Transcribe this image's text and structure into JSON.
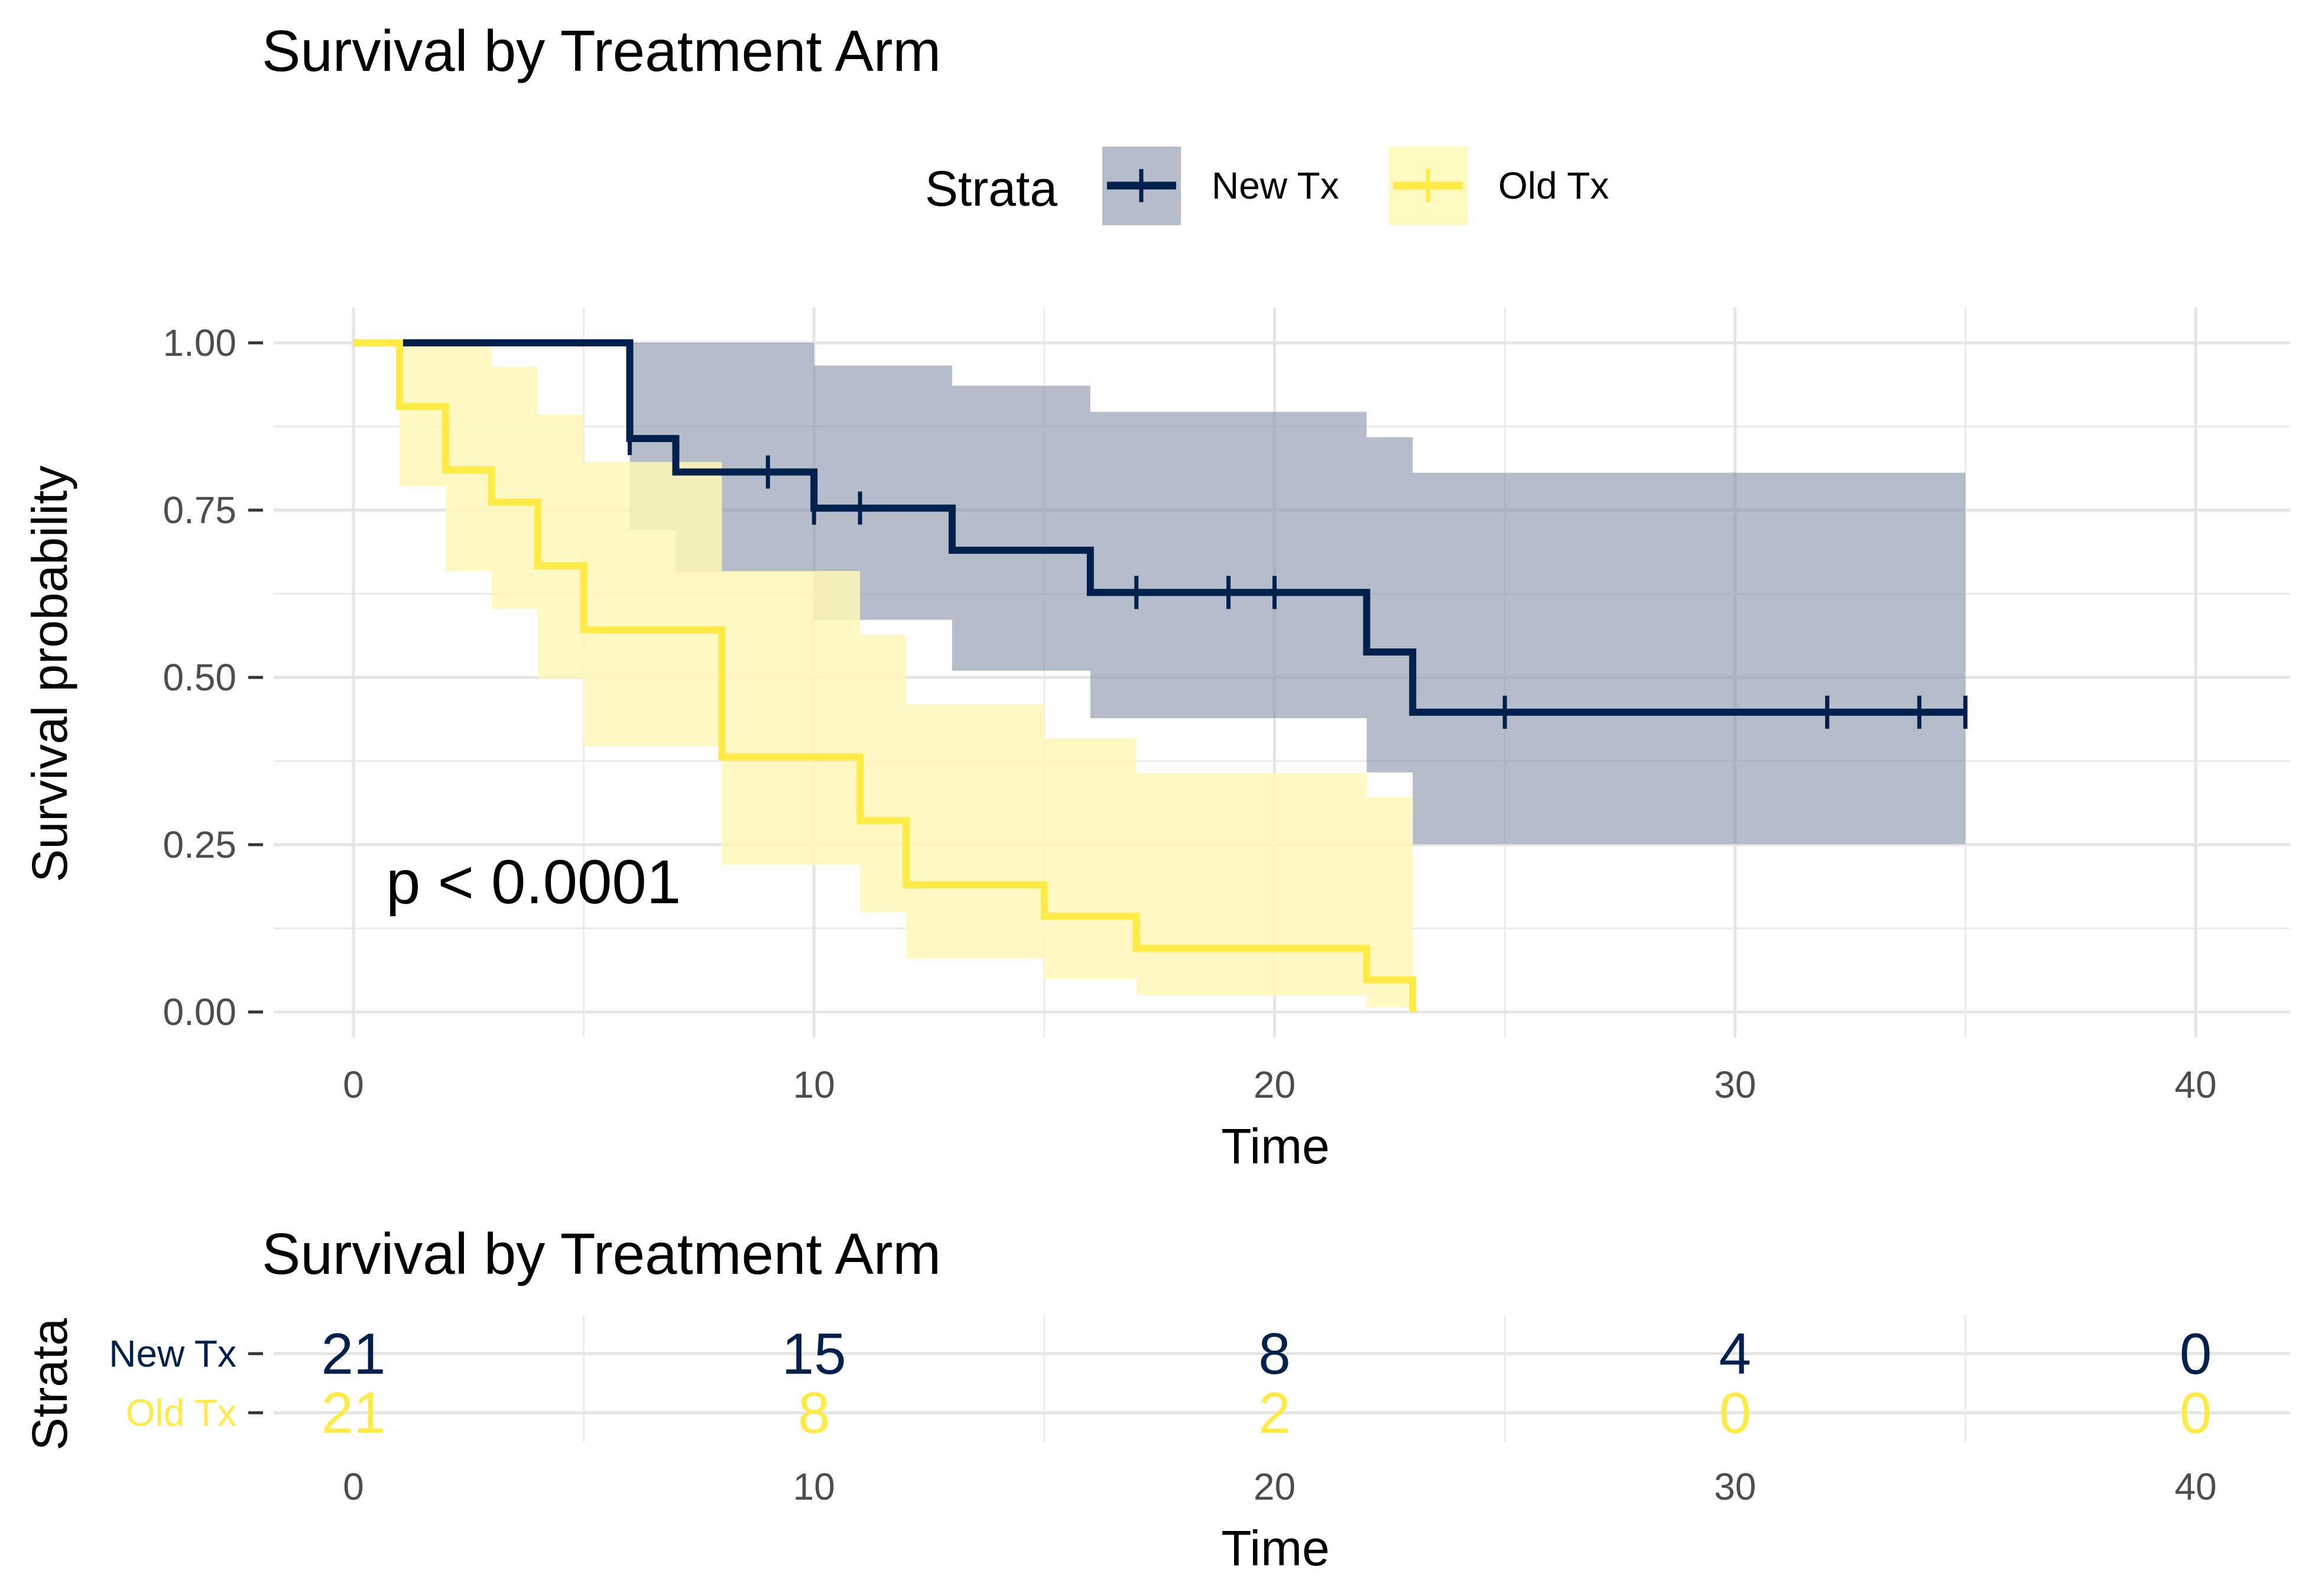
{
  "chart_data": [
    {
      "type": "line",
      "subtype": "kaplan-meier-step",
      "title": "Survival by Treatment Arm",
      "xlabel": "Time",
      "ylabel": "Survival probability",
      "xlim": [
        0,
        40
      ],
      "ylim": [
        0,
        1
      ],
      "xticks": [
        "0",
        "10",
        "20",
        "30",
        "40"
      ],
      "yticks": [
        "0.00",
        "0.25",
        "0.50",
        "0.75",
        "1.00"
      ],
      "grid": true,
      "legend": {
        "title": "Strata",
        "position": "top"
      },
      "annotation": "p < 0.0001",
      "series": [
        {
          "name": "New Tx",
          "color": "#00204d",
          "fill": "#8390a6",
          "steps": [
            [
              0,
              1.0
            ],
            [
              6,
              0.857
            ],
            [
              7,
              0.807
            ],
            [
              10,
              0.753
            ],
            [
              13,
              0.69
            ],
            [
              16,
              0.627
            ],
            [
              22,
              0.538
            ],
            [
              23,
              0.448
            ],
            [
              35,
              0.448
            ]
          ],
          "lower": [
            [
              0,
              1.0
            ],
            [
              6,
              0.72
            ],
            [
              7,
              0.657
            ],
            [
              10,
              0.586
            ],
            [
              13,
              0.51
            ],
            [
              16,
              0.439
            ],
            [
              22,
              0.358
            ],
            [
              23,
              0.251
            ],
            [
              35,
              0.251
            ]
          ],
          "upper": [
            [
              0,
              1.0
            ],
            [
              6,
              1.0
            ],
            [
              7,
              1.0
            ],
            [
              10,
              0.966
            ],
            [
              13,
              0.936
            ],
            [
              16,
              0.897
            ],
            [
              22,
              0.859
            ],
            [
              23,
              0.806
            ],
            [
              35,
              0.806
            ]
          ],
          "censored": [
            6,
            9,
            10,
            11,
            17,
            19,
            20,
            25,
            32,
            34,
            35
          ]
        },
        {
          "name": "Old Tx",
          "color": "#ffea46",
          "fill": "#fff7b8",
          "steps": [
            [
              0,
              1.0
            ],
            [
              1,
              0.905
            ],
            [
              2,
              0.81
            ],
            [
              3,
              0.762
            ],
            [
              4,
              0.667
            ],
            [
              5,
              0.571
            ],
            [
              8,
              0.381
            ],
            [
              11,
              0.286
            ],
            [
              12,
              0.19
            ],
            [
              15,
              0.143
            ],
            [
              17,
              0.095
            ],
            [
              22,
              0.048
            ],
            [
              23,
              0.0
            ]
          ],
          "lower": [
            [
              0,
              1.0
            ],
            [
              1,
              0.786
            ],
            [
              2,
              0.659
            ],
            [
              3,
              0.602
            ],
            [
              4,
              0.498
            ],
            [
              5,
              0.397
            ],
            [
              8,
              0.22
            ],
            [
              11,
              0.149
            ],
            [
              12,
              0.08
            ],
            [
              15,
              0.049
            ],
            [
              17,
              0.025
            ],
            [
              22,
              0.007
            ],
            [
              23,
              0.007
            ]
          ],
          "upper": [
            [
              0,
              1.0
            ],
            [
              1,
              1.0
            ],
            [
              2,
              0.995
            ],
            [
              3,
              0.964
            ],
            [
              4,
              0.893
            ],
            [
              5,
              0.822
            ],
            [
              8,
              0.659
            ],
            [
              11,
              0.564
            ],
            [
              12,
              0.46
            ],
            [
              15,
              0.409
            ],
            [
              17,
              0.357
            ],
            [
              22,
              0.321
            ],
            [
              23,
              0.321
            ]
          ],
          "censored": []
        }
      ]
    },
    {
      "type": "table",
      "subtype": "number-at-risk",
      "title": "Survival by Treatment Arm",
      "xlabel": "Time",
      "ylabel": "Strata",
      "x": [
        0,
        10,
        20,
        30,
        40
      ],
      "xticks": [
        "0",
        "10",
        "20",
        "30",
        "40"
      ],
      "rows": [
        {
          "name": "New Tx",
          "color": "#00204d",
          "values": [
            "21",
            "15",
            "8",
            "4",
            "0"
          ]
        },
        {
          "name": "Old Tx",
          "color": "#ffea46",
          "values": [
            "21",
            "8",
            "2",
            "0",
            "0"
          ]
        }
      ]
    }
  ]
}
